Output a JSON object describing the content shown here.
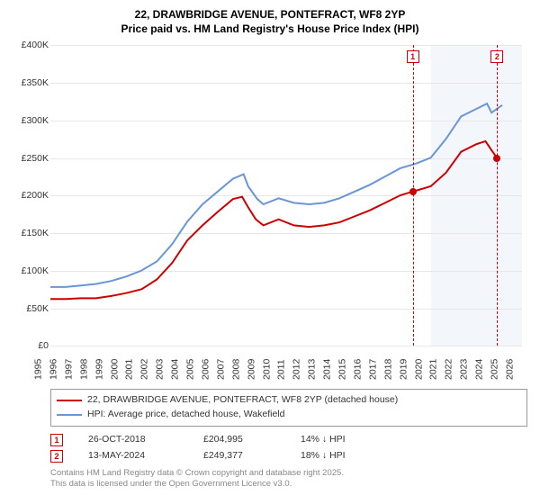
{
  "titles": {
    "line1": "22, DRAWBRIDGE AVENUE, PONTEFRACT, WF8 2YP",
    "line2": "Price paid vs. HM Land Registry's House Price Index (HPI)"
  },
  "chart": {
    "type": "line",
    "background_color": "#ffffff",
    "grid_color": "#e7e7e7",
    "x": {
      "min": 1995,
      "max": 2026,
      "ticks": [
        1995,
        1996,
        1997,
        1998,
        1999,
        2000,
        2001,
        2002,
        2003,
        2004,
        2005,
        2006,
        2007,
        2008,
        2009,
        2010,
        2011,
        2012,
        2013,
        2014,
        2015,
        2016,
        2017,
        2018,
        2019,
        2020,
        2021,
        2022,
        2023,
        2024,
        2025,
        2026
      ],
      "label_fontsize": 10.5
    },
    "y": {
      "min": 0,
      "max": 400000,
      "ticks": [
        0,
        50000,
        100000,
        150000,
        200000,
        250000,
        300000,
        350000,
        400000
      ],
      "tick_labels": [
        "£0",
        "£50K",
        "£100K",
        "£150K",
        "£200K",
        "£250K",
        "£300K",
        "£350K",
        "£400K"
      ],
      "label_fontsize": 10.5
    },
    "shaded_region": {
      "from": 2020,
      "to": 2026,
      "color": "rgba(100,150,220,0.08)"
    },
    "series": [
      {
        "name": "property",
        "label": "22, DRAWBRIDGE AVENUE, PONTEFRACT, WF8 2YP (detached house)",
        "color": "#cc0000",
        "width": 2,
        "points": [
          [
            1995,
            62000
          ],
          [
            1996,
            62000
          ],
          [
            1997,
            63000
          ],
          [
            1998,
            63000
          ],
          [
            1999,
            66000
          ],
          [
            2000,
            70000
          ],
          [
            2001,
            75000
          ],
          [
            2002,
            88000
          ],
          [
            2003,
            110000
          ],
          [
            2004,
            140000
          ],
          [
            2005,
            160000
          ],
          [
            2006,
            178000
          ],
          [
            2007,
            195000
          ],
          [
            2007.6,
            198000
          ],
          [
            2008,
            184000
          ],
          [
            2008.5,
            168000
          ],
          [
            2009,
            160000
          ],
          [
            2010,
            168000
          ],
          [
            2011,
            160000
          ],
          [
            2012,
            158000
          ],
          [
            2013,
            160000
          ],
          [
            2014,
            164000
          ],
          [
            2015,
            172000
          ],
          [
            2016,
            180000
          ],
          [
            2017,
            190000
          ],
          [
            2018,
            200000
          ],
          [
            2018.82,
            204995
          ],
          [
            2019,
            206000
          ],
          [
            2020,
            212000
          ],
          [
            2021,
            230000
          ],
          [
            2022,
            258000
          ],
          [
            2023,
            268000
          ],
          [
            2023.6,
            272000
          ],
          [
            2024,
            260000
          ],
          [
            2024.37,
            249377
          ]
        ]
      },
      {
        "name": "hpi",
        "label": "HPI: Average price, detached house, Wakefield",
        "color": "#6a95d6",
        "width": 2,
        "points": [
          [
            1995,
            78000
          ],
          [
            1996,
            78000
          ],
          [
            1997,
            80000
          ],
          [
            1998,
            82000
          ],
          [
            1999,
            86000
          ],
          [
            2000,
            92000
          ],
          [
            2001,
            100000
          ],
          [
            2002,
            112000
          ],
          [
            2003,
            135000
          ],
          [
            2004,
            165000
          ],
          [
            2005,
            188000
          ],
          [
            2006,
            205000
          ],
          [
            2007,
            222000
          ],
          [
            2007.7,
            228000
          ],
          [
            2008,
            212000
          ],
          [
            2008.6,
            195000
          ],
          [
            2009,
            188000
          ],
          [
            2010,
            196000
          ],
          [
            2011,
            190000
          ],
          [
            2012,
            188000
          ],
          [
            2013,
            190000
          ],
          [
            2014,
            196000
          ],
          [
            2015,
            205000
          ],
          [
            2016,
            214000
          ],
          [
            2017,
            225000
          ],
          [
            2018,
            236000
          ],
          [
            2019,
            242000
          ],
          [
            2020,
            250000
          ],
          [
            2021,
            275000
          ],
          [
            2022,
            305000
          ],
          [
            2023,
            315000
          ],
          [
            2023.7,
            322000
          ],
          [
            2024,
            310000
          ],
          [
            2024.7,
            320000
          ]
        ]
      }
    ],
    "markers": [
      {
        "badge": "1",
        "x": 2018.82,
        "y": 204995,
        "color": "#cc0000",
        "dot_color": "#cc0000"
      },
      {
        "badge": "2",
        "x": 2024.37,
        "y": 249377,
        "color": "#cc0000",
        "dot_color": "#cc0000"
      }
    ]
  },
  "legend": {
    "items": [
      {
        "color": "#cc0000",
        "label": "22, DRAWBRIDGE AVENUE, PONTEFRACT, WF8 2YP (detached house)"
      },
      {
        "color": "#6a95d6",
        "label": "HPI: Average price, detached house, Wakefield"
      }
    ]
  },
  "transactions": [
    {
      "badge": "1",
      "date": "26-OCT-2018",
      "price": "£204,995",
      "delta": "14% ↓ HPI"
    },
    {
      "badge": "2",
      "date": "13-MAY-2024",
      "price": "£249,377",
      "delta": "18% ↓ HPI"
    }
  ],
  "footnote": {
    "line1": "Contains HM Land Registry data © Crown copyright and database right 2025.",
    "line2": "This data is licensed under the Open Government Licence v3.0."
  }
}
